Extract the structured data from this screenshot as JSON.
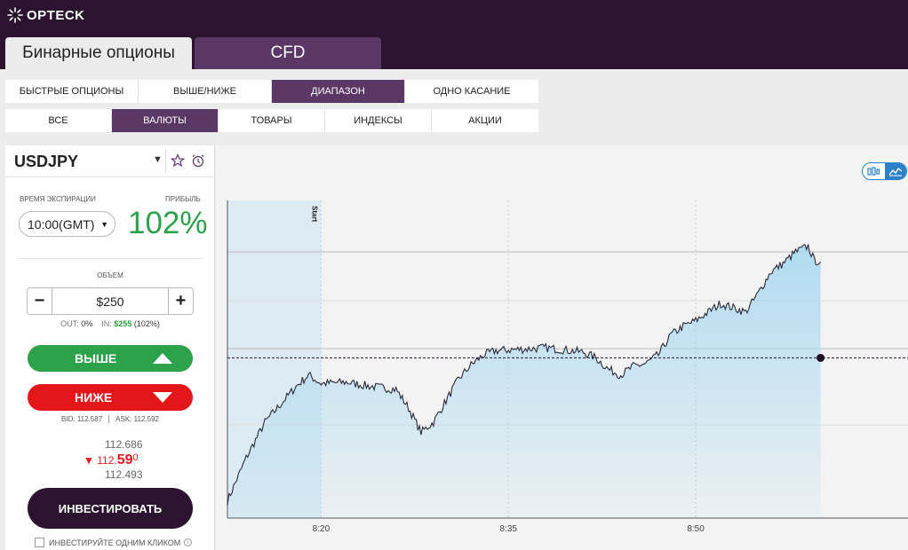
{
  "header": {
    "logo_text": "OPTECK",
    "tabs": [
      {
        "label": "Бинарные опционы",
        "active": true
      },
      {
        "label": "CFD",
        "active": false
      }
    ]
  },
  "option_types": [
    {
      "label": "БЫСТРЫЕ ОПЦИОНЫ",
      "active": false
    },
    {
      "label": "ВЫШЕ/НИЖЕ",
      "active": false
    },
    {
      "label": "ДИАПАЗОН",
      "active": true
    },
    {
      "label": "ОДНО КАСАНИЕ",
      "active": false
    }
  ],
  "asset_classes": [
    {
      "label": "ВСЕ",
      "active": false
    },
    {
      "label": "ВАЛЮТЫ",
      "active": true
    },
    {
      "label": "ТОВАРЫ",
      "active": false
    },
    {
      "label": "ИНДЕКСЫ",
      "active": false
    },
    {
      "label": "АКЦИИ",
      "active": false
    }
  ],
  "trade_panel": {
    "asset": "USDJPY",
    "expiry_label": "ВРЕМЯ ЭКСПИРАЦИИ",
    "expiry_value": "10:00(GMT)",
    "profit_label": "ПРИБЫЛЬ",
    "profit_value": "102%",
    "volume_label": "ОБЪЕМ",
    "amount": "$250",
    "out_label": "OUT:",
    "out_value": "0%",
    "in_label": "IN:",
    "in_value": "$255",
    "in_pct": "(102%)",
    "up_button": "ВЫШЕ",
    "down_button": "НИЖЕ",
    "bid_label": "BID:",
    "bid_value": "112.587",
    "ask_label": "ASK:",
    "ask_value": "112.592",
    "price_high": "112.686",
    "price_current_main": "112.",
    "price_current_big": "59",
    "price_current_sup": "0",
    "price_low": "112.493",
    "invest_button": "ИНВЕСТИРОВАТЬ",
    "oneclick_label": "ИНВЕСТИРУЙТЕ ОДНИМ КЛИКОМ"
  },
  "colors": {
    "brand_dark": "#2c1430",
    "brand_purple": "#5b3766",
    "up_green": "#2ca24a",
    "down_red": "#e5161a",
    "chart_line": "#2a2a3a",
    "chart_fill": "#a9d8f0",
    "toggle_blue": "#2b80c8"
  },
  "chart_data": {
    "type": "line",
    "start_marker_label": "Start",
    "x_tick_labels": [
      "8:20",
      "8:35",
      "8:50"
    ],
    "current_level": 112.59,
    "series_points": [
      [
        "8:12:30",
        112.49
      ],
      [
        "8:14:00",
        112.52
      ],
      [
        "8:15:30",
        112.545
      ],
      [
        "8:17:00",
        112.56
      ],
      [
        "8:18:00",
        112.57
      ],
      [
        "8:19:00",
        112.578
      ],
      [
        "8:20:00",
        112.572
      ],
      [
        "8:22:00",
        112.573
      ],
      [
        "8:24:00",
        112.57
      ],
      [
        "8:26:00",
        112.568
      ],
      [
        "8:27:00",
        112.555
      ],
      [
        "8:28:00",
        112.538
      ],
      [
        "8:29:00",
        112.545
      ],
      [
        "8:30:00",
        112.56
      ],
      [
        "8:31:00",
        112.575
      ],
      [
        "8:32:00",
        112.585
      ],
      [
        "8:33:00",
        112.592
      ],
      [
        "8:34:00",
        112.595
      ],
      [
        "8:36:00",
        112.596
      ],
      [
        "8:38:00",
        112.597
      ],
      [
        "8:40:00",
        112.595
      ],
      [
        "8:41:00",
        112.594
      ],
      [
        "8:42:00",
        112.59
      ],
      [
        "8:43:00",
        112.582
      ],
      [
        "8:44:00",
        112.578
      ],
      [
        "8:45:00",
        112.584
      ],
      [
        "8:46:00",
        112.586
      ],
      [
        "8:47:00",
        112.592
      ],
      [
        "8:48:00",
        112.606
      ],
      [
        "8:49:00",
        112.612
      ],
      [
        "8:50:00",
        112.616
      ],
      [
        "8:51:00",
        112.622
      ],
      [
        "8:52:00",
        112.628
      ],
      [
        "8:53:00",
        112.625
      ],
      [
        "8:54:00",
        112.622
      ],
      [
        "8:55:00",
        112.635
      ],
      [
        "8:56:00",
        112.65
      ],
      [
        "8:57:00",
        112.656
      ],
      [
        "8:58:00",
        112.664
      ],
      [
        "8:59:00",
        112.668
      ],
      [
        "8:59:30",
        112.658
      ],
      [
        "9:00:00",
        112.657
      ]
    ]
  }
}
